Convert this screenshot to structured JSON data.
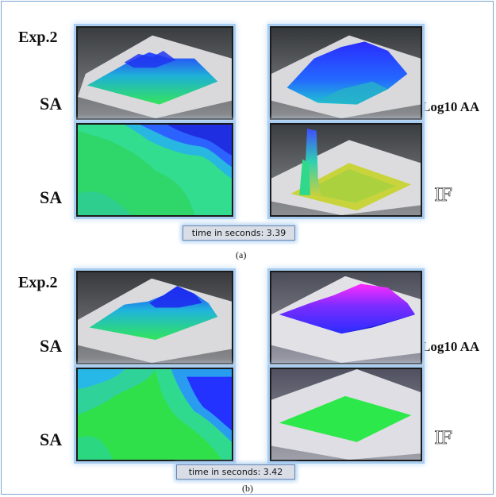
{
  "figure_a": {
    "exp_label": "Exp.2",
    "left_top_label": "SA",
    "left_bottom_label": "SA",
    "right_top_label": "Log10 AA",
    "right_bottom_label": "IF",
    "time_text": "time in seconds: 3.39",
    "caption": "(a)"
  },
  "figure_b": {
    "exp_label": "Exp.2",
    "left_top_label": "SA",
    "left_bottom_label": "SA",
    "right_top_label": "Log10 AA",
    "right_bottom_label": "IF",
    "time_text": "time in seconds: 3.42",
    "caption": "(b)"
  },
  "colors": {
    "panel_glow": "#a9cdf0",
    "surface_green": "#2fe05a",
    "surface_blue": "#1f3cff",
    "surface_magenta": "#ff30ff",
    "surface_yellow": "#d8d43a"
  }
}
